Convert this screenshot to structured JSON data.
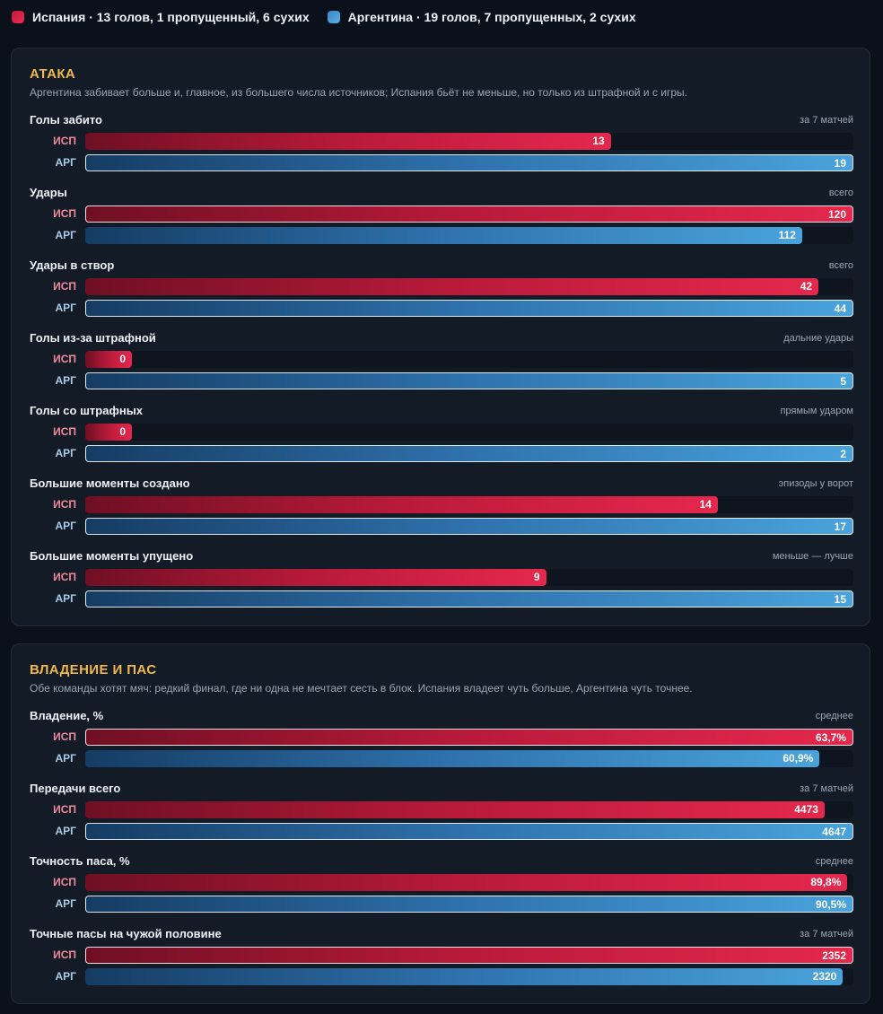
{
  "legend": {
    "spain": {
      "text": "Испания · 13 голов, 1 пропущенный, 6 сухих",
      "color": "#e0264b"
    },
    "argentina": {
      "text": "Аргентина · 19 голов, 7 пропущенных, 2 сухих",
      "color": "#4a9fdc"
    }
  },
  "chart_data": [
    {
      "type": "bar",
      "title": "АТАКА",
      "subtitle": "Аргентина забивает больше и, главное, из большего числа источников; Испания бьёт не меньше, но только из штрафной и с игры.",
      "row_labels": [
        "ИСП",
        "АРГ"
      ],
      "metrics": [
        {
          "name": "Голы забито",
          "note": "за 7 матчей",
          "values": [
            13,
            19
          ],
          "labels": [
            "13",
            "19"
          ]
        },
        {
          "name": "Удары",
          "note": "всего",
          "values": [
            120,
            112
          ],
          "labels": [
            "120",
            "112"
          ]
        },
        {
          "name": "Удары в створ",
          "note": "всего",
          "values": [
            42,
            44
          ],
          "labels": [
            "42",
            "44"
          ]
        },
        {
          "name": "Голы из-за штрафной",
          "note": "дальние удары",
          "values": [
            0,
            5
          ],
          "labels": [
            "0",
            "5"
          ]
        },
        {
          "name": "Голы со штрафных",
          "note": "прямым ударом",
          "values": [
            0,
            2
          ],
          "labels": [
            "0",
            "2"
          ]
        },
        {
          "name": "Большие моменты создано",
          "note": "эпизоды у ворот",
          "values": [
            14,
            17
          ],
          "labels": [
            "14",
            "17"
          ]
        },
        {
          "name": "Большие моменты упущено",
          "note": "меньше — лучше",
          "values": [
            9,
            15
          ],
          "labels": [
            "9",
            "15"
          ]
        }
      ]
    },
    {
      "type": "bar",
      "title": "ВЛАДЕНИЕ И ПАС",
      "subtitle": "Обе команды хотят мяч: редкий финал, где ни одна не мечтает сесть в блок. Испания владеет чуть больше, Аргентина чуть точнее.",
      "row_labels": [
        "ИСП",
        "АРГ"
      ],
      "metrics": [
        {
          "name": "Владение, %",
          "note": "среднее",
          "values": [
            63.7,
            60.9
          ],
          "labels": [
            "63,7%",
            "60,9%"
          ]
        },
        {
          "name": "Передачи всего",
          "note": "за 7 матчей",
          "values": [
            4473,
            4647
          ],
          "labels": [
            "4473",
            "4647"
          ]
        },
        {
          "name": "Точность паса, %",
          "note": "среднее",
          "values": [
            89.8,
            90.5
          ],
          "labels": [
            "89,8%",
            "90,5%"
          ]
        },
        {
          "name": "Точные пасы на чужой половине",
          "note": "за 7 матчей",
          "values": [
            2352,
            2320
          ],
          "labels": [
            "2352",
            "2320"
          ]
        }
      ]
    }
  ]
}
